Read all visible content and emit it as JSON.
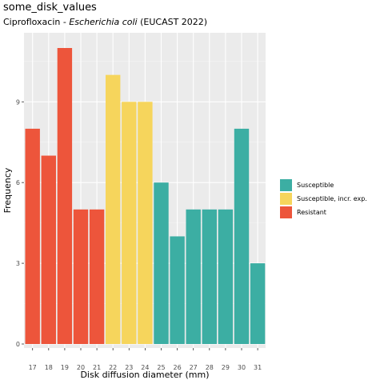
{
  "title": "some_disk_values",
  "subtitle": {
    "prefix": "Ciprofloxacin - ",
    "organism": "Escherichia coli",
    "suffix": " (EUCAST 2022)"
  },
  "chart_data": {
    "type": "bar",
    "xlabel": "Disk diffusion diameter (mm)",
    "ylabel": "Frequency",
    "categories": [
      "17",
      "18",
      "19",
      "20",
      "21",
      "22",
      "23",
      "24",
      "25",
      "26",
      "27",
      "28",
      "29",
      "30",
      "31"
    ],
    "values": [
      8,
      7,
      11,
      5,
      5,
      10,
      9,
      9,
      6,
      4,
      5,
      5,
      5,
      8,
      3
    ],
    "interpretation": [
      "R",
      "R",
      "R",
      "R",
      "R",
      "I",
      "I",
      "I",
      "S",
      "S",
      "S",
      "S",
      "S",
      "S",
      "S"
    ],
    "yticks": [
      0,
      3,
      6,
      9
    ],
    "ylim": [
      0,
      11.55
    ],
    "grid": true,
    "legend_position": "right",
    "colors": {
      "S": "#3CAEA3",
      "I": "#F6D55C",
      "R": "#ED553B",
      "panel": "#EBEBEB",
      "grid_major": "#FFFFFF",
      "grid_minor": "#F5F5F5"
    }
  },
  "legend": [
    {
      "key": "S",
      "label": "Susceptible"
    },
    {
      "key": "I",
      "label": "Susceptible, incr. exp."
    },
    {
      "key": "R",
      "label": "Resistant"
    }
  ]
}
